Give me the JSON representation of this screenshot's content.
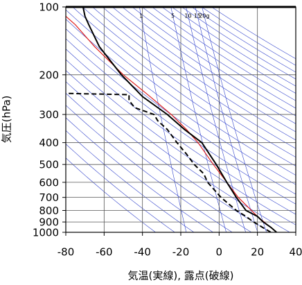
{
  "chart_data": {
    "type": "line",
    "y_log_scale": true,
    "grid": true,
    "xlabel": "気温(実線), 露点(破線)",
    "ylabel": "気圧(hPa)",
    "xlim": [
      -80,
      40
    ],
    "xticks": [
      -80,
      -60,
      -40,
      -20,
      0,
      20,
      40
    ],
    "ylim": [
      1000,
      100
    ],
    "yticks": [
      100,
      200,
      300,
      400,
      500,
      600,
      700,
      800,
      900,
      1000
    ],
    "mixing_ratio_lines": [
      1,
      5,
      10,
      15,
      {
        "value": 20,
        "label": "20g"
      }
    ],
    "mixing_ratio_color": "#3344cc",
    "series": [
      {
        "color": "#e02020",
        "dashed": false,
        "x": [
          30,
          20,
          10,
          -3,
          -11,
          -17,
          -25,
          -36,
          -50,
          -65,
          -75,
          -80
        ],
        "y": [
          1000,
          850,
          700,
          500,
          400,
          350,
          300,
          250,
          200,
          150,
          120,
          110
        ]
      },
      {
        "color": "#000000",
        "dashed": false,
        "x": [
          30,
          27,
          23,
          20,
          14,
          9,
          4,
          -1.5,
          -9,
          -18,
          -27,
          -40,
          -51,
          -62.5,
          -68,
          -70,
          -71
        ],
        "y": [
          1000,
          950,
          900,
          850,
          800,
          700,
          600,
          500,
          400,
          350,
          300,
          250,
          200,
          150,
          120,
          110,
          100
        ]
      },
      {
        "color": "#000000",
        "dashed": true,
        "x": [
          27,
          18,
          14,
          9,
          1,
          -6,
          -8,
          -13,
          -17,
          -22,
          -27,
          -32,
          -34,
          -44,
          -47,
          -47,
          -80
        ],
        "y": [
          1000,
          900,
          850,
          800,
          700,
          600,
          550,
          500,
          450,
          400,
          350,
          320,
          300,
          280,
          260,
          245,
          242
        ]
      }
    ]
  }
}
